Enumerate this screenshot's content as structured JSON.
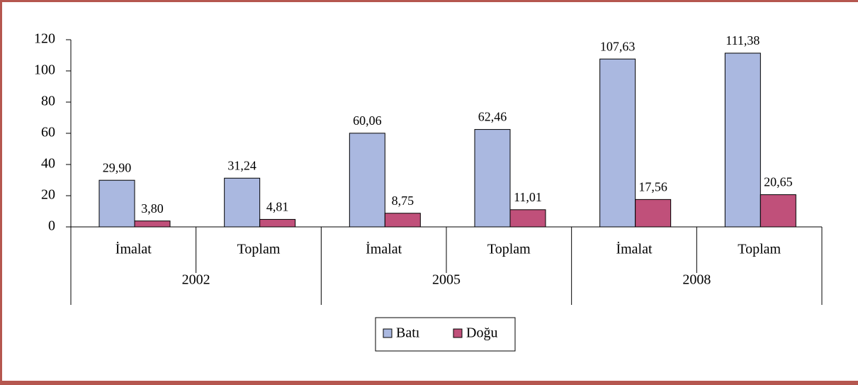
{
  "chart_data": {
    "type": "bar",
    "categories": [
      "İmalat",
      "Toplam",
      "İmalat",
      "Toplam",
      "İmalat",
      "Toplam"
    ],
    "groups": [
      "2002",
      "2005",
      "2008"
    ],
    "series": [
      {
        "name": "Batı",
        "color": "#aab8e0",
        "values": [
          29.9,
          31.24,
          60.06,
          62.46,
          107.63,
          111.38
        ],
        "value_labels": [
          "29,90",
          "31,24",
          "60,06",
          "62,46",
          "107,63",
          "111,38"
        ]
      },
      {
        "name": "Doğu",
        "color": "#c0507a",
        "values": [
          3.8,
          4.81,
          8.75,
          11.01,
          17.56,
          20.65
        ],
        "value_labels": [
          "3,80",
          "4,81",
          "8,75",
          "11,01",
          "17,56",
          "20,65"
        ]
      }
    ],
    "ylim": [
      0,
      120
    ],
    "yticks": [
      0,
      20,
      40,
      60,
      80,
      100,
      120
    ]
  }
}
